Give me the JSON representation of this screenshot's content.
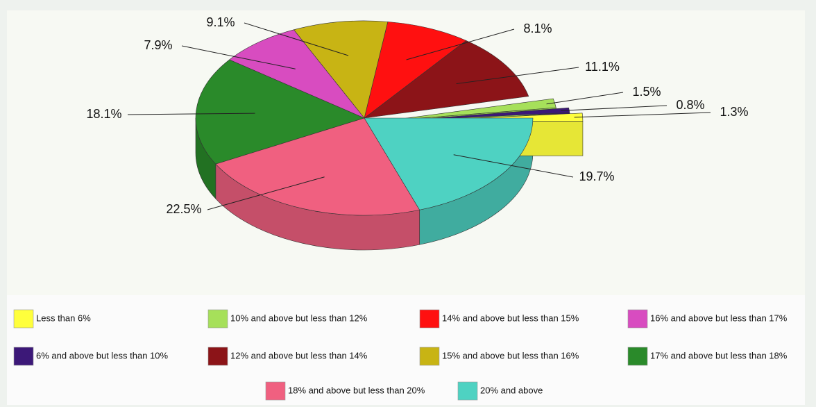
{
  "chart_data": {
    "type": "pie",
    "categories": [
      "Less than 6%",
      "6% and above but less than 10%",
      "10% and above but less than 12%",
      "12% and above but less than 14%",
      "14% and above but less than 15%",
      "15% and above but less than 16%",
      "16% and above but less than 17%",
      "17% and above but less than 18%",
      "18% and above but less than 20%",
      "20% and above"
    ],
    "values": [
      1.3,
      0.8,
      1.5,
      11.1,
      8.1,
      9.1,
      7.9,
      18.1,
      22.5,
      19.7
    ],
    "value_labels": [
      "1.3%",
      "0.8%",
      "1.5%",
      "11.1%",
      "8.1%",
      "9.1%",
      "7.9%",
      "18.1%",
      "22.5%",
      "19.7%"
    ],
    "colors": [
      "#ffff3c",
      "#3c1878",
      "#a6e05a",
      "#8c1418",
      "#ff1010",
      "#c8b414",
      "#d84cc0",
      "#2a8a2a",
      "#f06080",
      "#4ed2c2"
    ]
  }
}
